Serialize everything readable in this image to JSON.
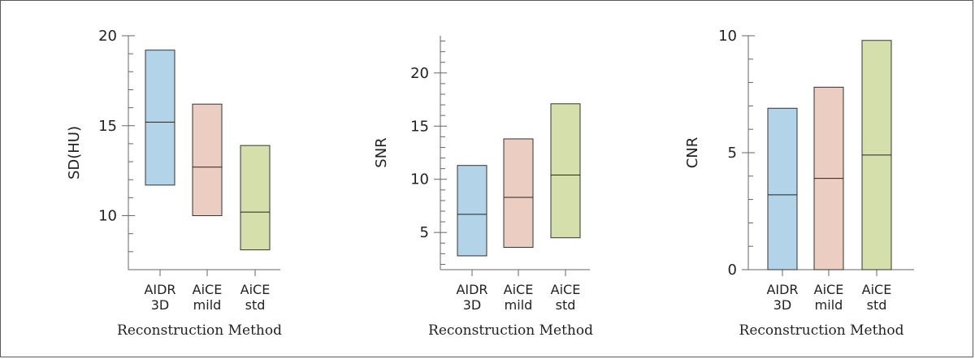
{
  "colors": {
    "AIDR 3D": "#b3d4e8",
    "AiCE mild": "#eccdc1",
    "AiCE std": "#d5dfab"
  },
  "chart_data": [
    {
      "type": "box",
      "ylabel": "SD(HU)",
      "xlabel": "Reconstruction Method",
      "ylim": [
        7.0,
        20.0
      ],
      "yticks": [
        10,
        15,
        20
      ],
      "minor_step": 1,
      "categories": [
        [
          "AIDR",
          "3D"
        ],
        [
          "AiCE",
          "mild"
        ],
        [
          "AiCE",
          "std"
        ]
      ],
      "boxes": [
        {
          "category": "AIDR 3D",
          "low": 11.7,
          "median": 15.2,
          "high": 19.2
        },
        {
          "category": "AiCE mild",
          "low": 10.0,
          "median": 12.7,
          "high": 16.2
        },
        {
          "category": "AiCE std",
          "low": 8.1,
          "median": 10.2,
          "high": 13.9
        }
      ]
    },
    {
      "type": "box",
      "ylabel": "SNR",
      "xlabel": "Reconstruction Method",
      "ylim": [
        1.5,
        23.5
      ],
      "yticks": [
        5,
        10,
        15,
        20
      ],
      "minor_step": 1,
      "categories": [
        [
          "AIDR",
          "3D"
        ],
        [
          "AiCE",
          "mild"
        ],
        [
          "AiCE",
          "std"
        ]
      ],
      "boxes": [
        {
          "category": "AIDR 3D",
          "low": 2.8,
          "median": 6.7,
          "high": 11.3
        },
        {
          "category": "AiCE mild",
          "low": 3.6,
          "median": 8.3,
          "high": 13.8
        },
        {
          "category": "AiCE std",
          "low": 4.5,
          "median": 10.4,
          "high": 17.1
        }
      ]
    },
    {
      "type": "box",
      "ylabel": "CNR",
      "xlabel": "Reconstruction Method",
      "ylim": [
        0,
        10
      ],
      "yticks": [
        0,
        5,
        10
      ],
      "minor_step": 1,
      "categories": [
        [
          "AIDR",
          "3D"
        ],
        [
          "AiCE",
          "mild"
        ],
        [
          "AiCE",
          "std"
        ]
      ],
      "boxes": [
        {
          "category": "AIDR 3D",
          "low": 0,
          "median": 3.2,
          "high": 6.9
        },
        {
          "category": "AiCE mild",
          "low": 0,
          "median": 3.9,
          "high": 7.8
        },
        {
          "category": "AiCE std",
          "low": 0,
          "median": 4.9,
          "high": 9.8
        }
      ]
    }
  ]
}
